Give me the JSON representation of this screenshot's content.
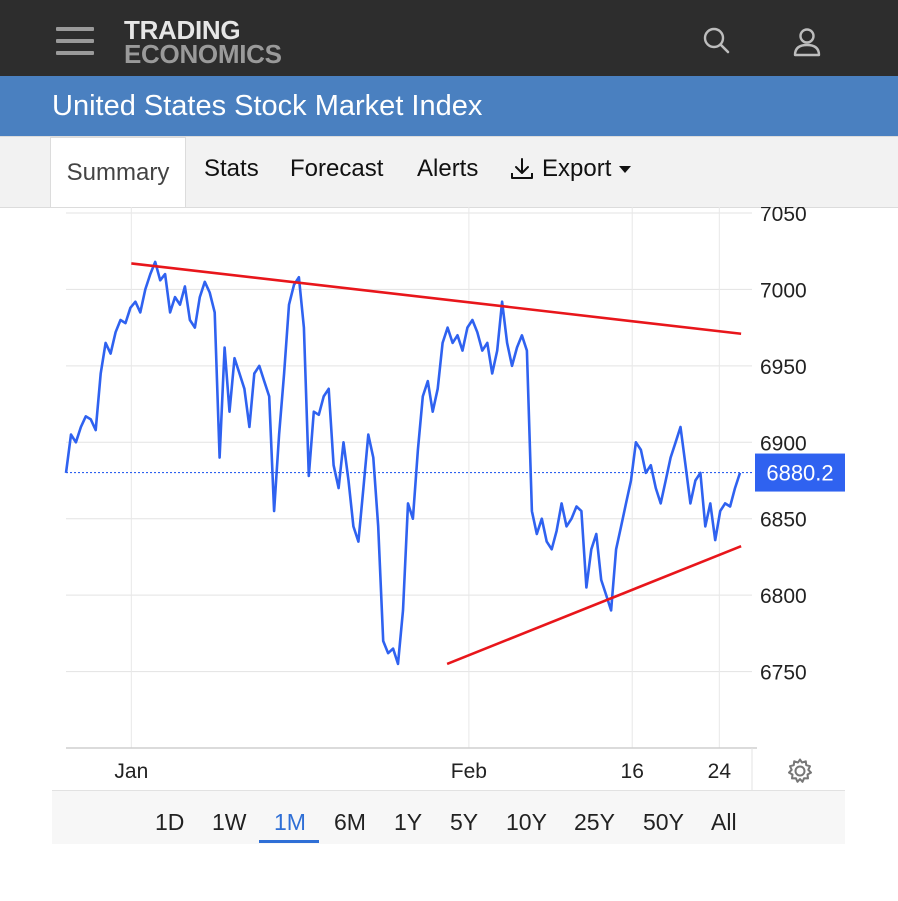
{
  "header": {
    "logo_line1": "TRADING",
    "logo_line2": "ECONOMICS",
    "icons": [
      "menu-icon",
      "search-icon",
      "user-icon"
    ]
  },
  "banner": {
    "title": "United States Stock Market Index"
  },
  "tabs": {
    "summary": "Summary",
    "stats": "Stats",
    "forecast": "Forecast",
    "alerts": "Alerts",
    "export": "Export"
  },
  "ranges": [
    "1D",
    "1W",
    "1M",
    "6M",
    "1Y",
    "5Y",
    "10Y",
    "25Y",
    "50Y",
    "All"
  ],
  "active_range": "1M",
  "colors": {
    "line": "#2f62f0",
    "trendline": "#e8161b",
    "last_badge": "#2f62f0",
    "banner": "#4a80c0",
    "topbar": "#2d2d2d"
  },
  "chart_data": {
    "type": "line",
    "title": "",
    "xlabel": "",
    "ylabel": "",
    "x_tick_labels": [
      "Jan",
      "Feb",
      "16",
      "24"
    ],
    "y_tick_labels": [
      "6750",
      "6800",
      "6850",
      "6900",
      "6950",
      "7000",
      "7050"
    ],
    "ylim": [
      6700,
      7050
    ],
    "grid": true,
    "last_value_label": "6880.2",
    "last_value": 6880.2,
    "series": [
      {
        "values": [
          6880,
          6905,
          6900,
          6910,
          6917,
          6915,
          6908,
          6945,
          6965,
          6958,
          6972,
          6980,
          6978,
          6988,
          6992,
          6985,
          7000,
          7010,
          7018,
          7006,
          7010,
          6985,
          6995,
          6990,
          7002,
          6980,
          6975,
          6995,
          7005,
          6998,
          6985,
          6890,
          6962,
          6920,
          6955,
          6945,
          6935,
          6910,
          6945,
          6950,
          6940,
          6930,
          6855,
          6905,
          6945,
          6990,
          7003,
          7008,
          6975,
          6878,
          6920,
          6918,
          6930,
          6935,
          6885,
          6870,
          6900,
          6875,
          6845,
          6835,
          6870,
          6905,
          6890,
          6845,
          6770,
          6762,
          6765,
          6755,
          6790,
          6860,
          6850,
          6895,
          6930,
          6940,
          6920,
          6935,
          6965,
          6975,
          6965,
          6970,
          6960,
          6975,
          6980,
          6972,
          6960,
          6965,
          6945,
          6960,
          6992,
          6965,
          6950,
          6962,
          6970,
          6960,
          6855,
          6840,
          6850,
          6835,
          6830,
          6842,
          6860,
          6845,
          6850,
          6858,
          6855,
          6805,
          6830,
          6840,
          6810,
          6800,
          6790,
          6830,
          6845,
          6860,
          6875,
          6900,
          6895,
          6880,
          6885,
          6870,
          6860,
          6875,
          6890,
          6900,
          6910,
          6885,
          6860,
          6875,
          6880,
          6845,
          6860,
          6836,
          6855,
          6860,
          6858,
          6870,
          6880
        ]
      }
    ],
    "trendlines": [
      {
        "from": {
          "date": "2026-01-01",
          "value": 7017
        },
        "to": {
          "date": "2026-02-26",
          "value": 6971
        }
      },
      {
        "from": {
          "date": "2026-01-30",
          "value": 6755
        },
        "to": {
          "date": "2026-02-26",
          "value": 6832
        }
      }
    ]
  }
}
